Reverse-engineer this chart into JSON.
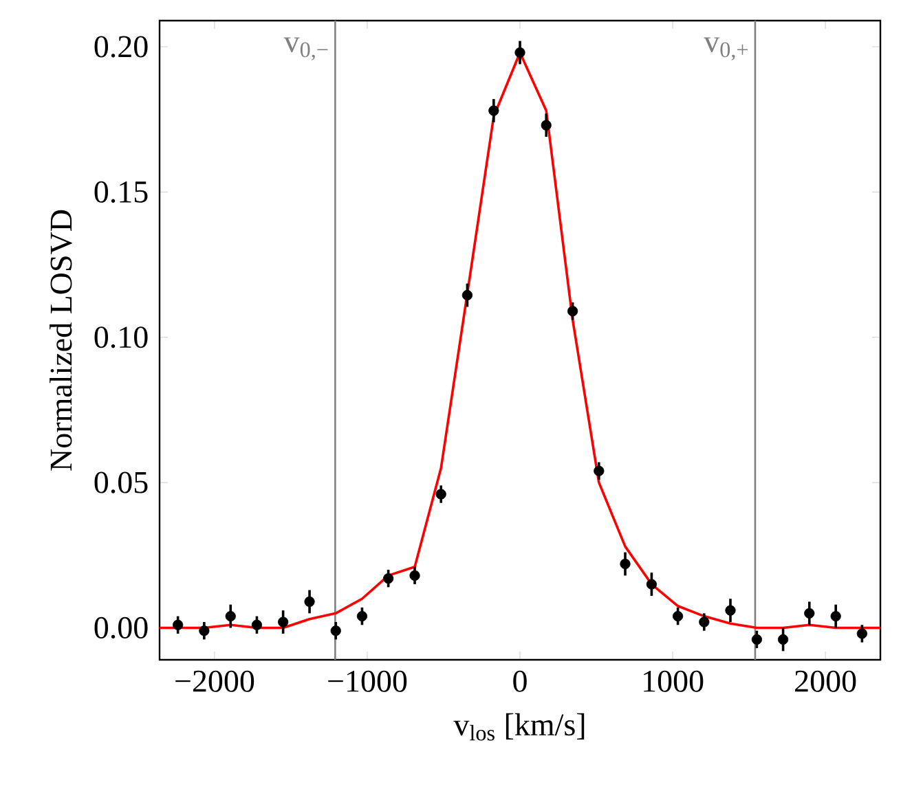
{
  "chart_data": {
    "type": "scatter",
    "xlabel": "v$_{los}$ [km/s]",
    "ylabel": "Normalized LOSVD",
    "xlim": [
      -2360,
      2360
    ],
    "ylim": [
      -0.011,
      0.209
    ],
    "xticks": [
      {
        "value": -2000,
        "label": "−2000"
      },
      {
        "value": -1000,
        "label": "−1000"
      },
      0,
      1000,
      2000
    ],
    "yticks": [
      {
        "value": 0,
        "label": "0.00"
      },
      {
        "value": 0.05,
        "label": "0.05"
      },
      {
        "value": 0.1,
        "label": "0.10"
      },
      {
        "value": 0.15,
        "label": "0.15"
      },
      {
        "value": 0.2,
        "label": "0.20"
      }
    ],
    "grid": false,
    "ref_lines": [
      {
        "axis": "x",
        "value": -1210,
        "label": "v$_{0,−}$",
        "color": "#808080"
      },
      {
        "axis": "x",
        "value": 1540,
        "label": "v$_{0,+}$",
        "color": "#808080"
      }
    ],
    "series": [
      {
        "type": "line",
        "marker": "none",
        "color": "#ff0000",
        "x": [
          -2360,
          -2240,
          -2068,
          -1895,
          -1723,
          -1551,
          -1378,
          -1206,
          -1034,
          -862,
          -689,
          -517,
          -345,
          -172,
          0,
          172,
          345,
          517,
          689,
          862,
          1034,
          1206,
          1378,
          1551,
          1723,
          1895,
          2068,
          2240,
          2360
        ],
        "values": [
          0.0,
          0.0,
          0.0,
          0.001,
          0.0,
          0.0,
          0.003,
          0.005,
          0.01,
          0.018,
          0.021,
          0.055,
          0.115,
          0.176,
          0.198,
          0.178,
          0.106,
          0.05,
          0.028,
          0.015,
          0.0075,
          0.004,
          0.0015,
          0.0,
          0.0,
          0.001,
          0.0,
          0.0,
          0.0
        ]
      },
      {
        "marker": "circle",
        "color": "#000000",
        "x": [
          -2240,
          -2068,
          -1895,
          -1723,
          -1551,
          -1378,
          -1206,
          -1034,
          -862,
          -689,
          -517,
          -345,
          -172,
          0,
          172,
          345,
          517,
          689,
          862,
          1034,
          1206,
          1378,
          1551,
          1723,
          1895,
          2068,
          2240
        ],
        "values": [
          0.001,
          -0.001,
          0.004,
          0.001,
          0.002,
          0.009,
          -0.001,
          0.004,
          0.017,
          0.018,
          0.046,
          0.1145,
          0.178,
          0.198,
          0.173,
          0.109,
          0.054,
          0.022,
          0.015,
          0.004,
          0.002,
          0.006,
          -0.004,
          -0.004,
          0.005,
          0.004,
          -0.002
        ],
        "errors": [
          0.003,
          0.003,
          0.004,
          0.003,
          0.004,
          0.004,
          0.003,
          0.003,
          0.003,
          0.003,
          0.003,
          0.004,
          0.004,
          0.004,
          0.004,
          0.003,
          0.003,
          0.004,
          0.004,
          0.003,
          0.003,
          0.004,
          0.003,
          0.004,
          0.004,
          0.004,
          0.003
        ]
      }
    ]
  }
}
